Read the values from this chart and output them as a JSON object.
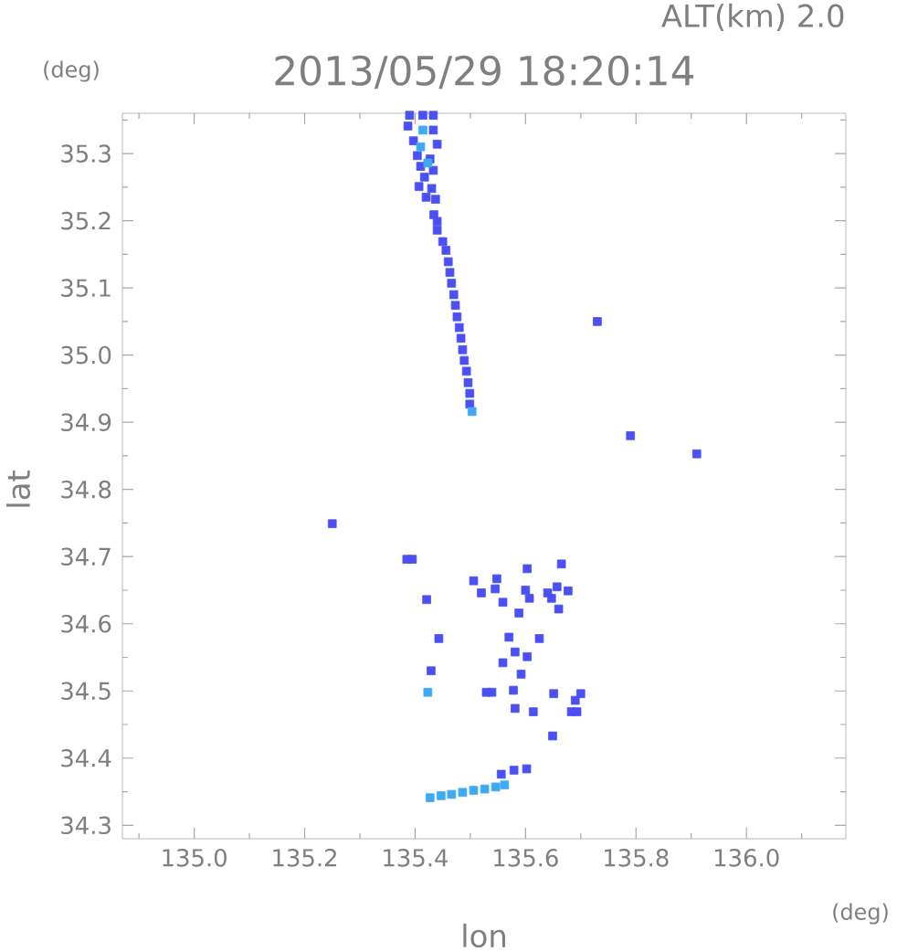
{
  "chart_data": {
    "type": "scatter",
    "title": "2013/05/29 18:20:14",
    "subtitle": "ALT(km) 2.0",
    "xlabel": "lon",
    "ylabel": "lat",
    "annotations": [
      "(deg)",
      "(deg)"
    ],
    "marker": "square",
    "xlim": [
      134.87,
      136.18
    ],
    "ylim": [
      34.28,
      35.36
    ],
    "xticks": [
      {
        "value": 134.9,
        "label": null
      },
      {
        "value": 135.0,
        "label": "135.0"
      },
      {
        "value": 135.1,
        "label": null
      },
      135.2,
      {
        "value": 135.3,
        "label": null
      },
      135.4,
      {
        "value": 135.5,
        "label": null
      },
      135.6,
      {
        "value": 135.7,
        "label": null
      },
      135.8,
      {
        "value": 135.9,
        "label": null
      },
      {
        "value": 136.0,
        "label": "136.0"
      },
      {
        "value": 136.1,
        "label": null
      }
    ],
    "yticks": [
      34.3,
      {
        "value": 34.35,
        "label": null
      },
      34.4,
      {
        "value": 34.45,
        "label": null
      },
      34.5,
      {
        "value": 34.55,
        "label": null
      },
      34.6,
      {
        "value": 34.65,
        "label": null
      },
      34.7,
      {
        "value": 34.75,
        "label": null
      },
      34.8,
      {
        "value": 34.85,
        "label": null
      },
      34.9,
      {
        "value": 34.95,
        "label": null
      },
      {
        "value": 35.0,
        "label": "35.0"
      },
      {
        "value": 35.05,
        "label": null
      },
      35.1,
      {
        "value": 35.15,
        "label": null
      },
      35.2,
      {
        "value": 35.25,
        "label": null
      },
      35.3,
      {
        "value": 35.35,
        "label": null
      }
    ],
    "series": [
      {
        "color": "#4b50f5",
        "x": [
          135.39,
          135.414,
          135.433,
          135.387,
          135.433,
          135.397,
          135.44,
          135.404,
          135.427,
          135.41,
          135.433,
          135.417,
          135.407,
          135.43,
          135.42,
          135.437,
          135.434,
          135.44,
          135.44,
          135.45,
          135.456,
          135.46,
          135.463,
          135.466,
          135.47,
          135.473,
          135.476,
          135.48,
          135.483,
          135.486,
          135.489,
          135.493,
          135.496,
          135.499,
          135.499,
          135.73,
          135.79,
          135.91,
          135.25,
          135.385,
          135.395,
          135.506,
          135.548,
          135.603,
          135.665,
          135.52,
          135.545,
          135.6,
          135.64,
          135.657,
          135.677,
          135.421,
          135.559,
          135.607,
          135.647,
          135.588,
          135.66,
          135.443,
          135.57,
          135.625,
          135.581,
          135.603,
          135.559,
          135.429,
          135.592,
          135.539,
          135.529,
          135.578,
          135.581,
          135.614,
          135.651,
          135.7,
          135.69,
          135.693,
          135.683,
          135.649,
          135.556,
          135.579,
          135.602
        ],
        "values": [
          35.357,
          35.357,
          35.357,
          35.341,
          35.335,
          35.319,
          35.314,
          35.297,
          35.292,
          35.281,
          35.275,
          35.265,
          35.251,
          35.248,
          35.235,
          35.232,
          35.209,
          35.199,
          35.186,
          35.169,
          35.156,
          35.139,
          35.123,
          35.107,
          35.09,
          35.074,
          35.057,
          35.041,
          35.025,
          35.008,
          34.992,
          34.976,
          34.959,
          34.943,
          34.927,
          35.05,
          34.88,
          34.853,
          34.749,
          34.696,
          34.696,
          34.664,
          34.667,
          34.682,
          34.689,
          34.646,
          34.652,
          34.65,
          34.646,
          34.655,
          34.649,
          34.636,
          34.632,
          34.638,
          34.638,
          34.616,
          34.622,
          34.578,
          34.58,
          34.578,
          34.558,
          34.551,
          34.542,
          34.53,
          34.525,
          34.498,
          34.498,
          34.501,
          34.474,
          34.469,
          34.496,
          34.496,
          34.486,
          34.469,
          34.469,
          34.433,
          34.376,
          34.382,
          34.384
        ]
      },
      {
        "color": "#3fa9f5",
        "x": [
          135.414,
          135.41,
          135.423,
          135.503,
          135.423,
          135.427,
          135.447,
          135.466,
          135.486,
          135.506,
          135.526,
          135.546,
          135.562
        ],
        "values": [
          35.335,
          35.31,
          35.286,
          34.916,
          34.498,
          34.341,
          34.344,
          34.346,
          34.349,
          34.352,
          34.354,
          34.357,
          34.36
        ]
      }
    ]
  }
}
